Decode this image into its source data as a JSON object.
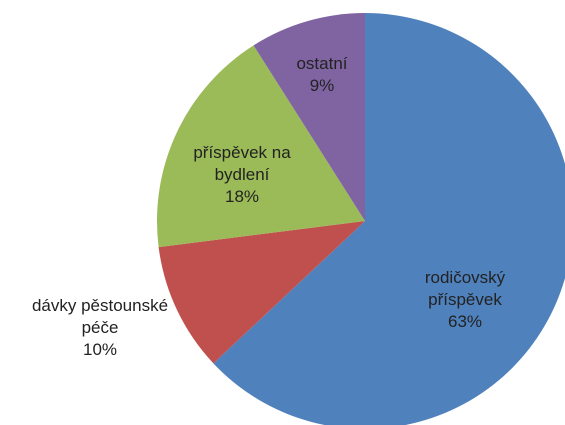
{
  "chart_data": {
    "type": "pie",
    "categories": [
      "rodičovský příspěvek",
      "dávky pěstounské péče",
      "příspěvek na bydlení",
      "ostatní"
    ],
    "values": [
      63,
      10,
      18,
      9
    ],
    "value_labels": [
      "63%",
      "10%",
      "18%",
      "9%"
    ],
    "colors": [
      "#4f81bd",
      "#c0504d",
      "#9bbb59",
      "#8064a2"
    ]
  }
}
